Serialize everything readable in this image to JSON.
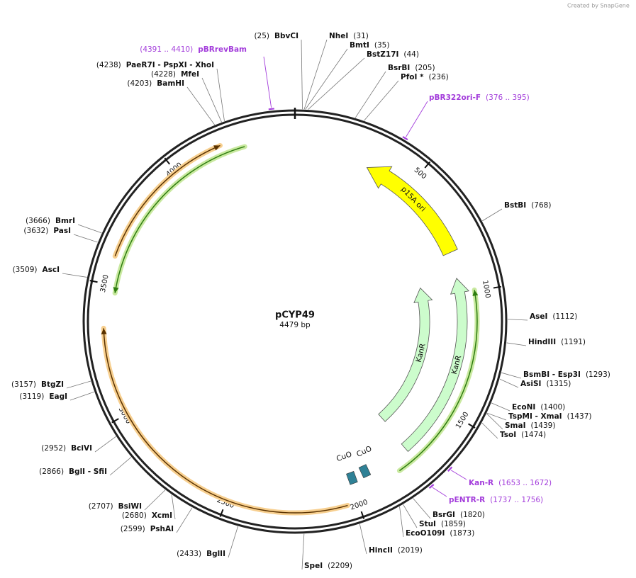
{
  "credit": "Created by SnapGene",
  "plasmid": {
    "name": "pCYP49",
    "length": "4479 bp"
  },
  "ticks": [
    "500",
    "1000",
    "1500",
    "2000",
    "2500",
    "3000",
    "3500",
    "4000"
  ],
  "enzymes": [
    {
      "name": "BbvCI",
      "position": "(25)"
    },
    {
      "name": "NheI",
      "position": "(31)"
    },
    {
      "name": "BmtI",
      "position": "(35)"
    },
    {
      "name": "BstZ17I",
      "position": "(44)"
    },
    {
      "name": "BsrBI",
      "position": "(205)"
    },
    {
      "name": "PfoI *",
      "position": "(236)"
    },
    {
      "name": "BstBI",
      "position": "(768)"
    },
    {
      "name": "AseI",
      "position": "(1112)"
    },
    {
      "name": "HindIII",
      "position": "(1191)"
    },
    {
      "name": "BsmBI - Esp3I",
      "position": "(1293)"
    },
    {
      "name": "AsiSI",
      "position": "(1315)"
    },
    {
      "name": "EcoNI",
      "position": "(1400)"
    },
    {
      "name": "TspMI - XmaI",
      "position": "(1437)"
    },
    {
      "name": "SmaI",
      "position": "(1439)"
    },
    {
      "name": "TsoI",
      "position": "(1474)"
    },
    {
      "name": "BsrGI",
      "position": "(1820)"
    },
    {
      "name": "StuI",
      "position": "(1859)"
    },
    {
      "name": "EcoO109I",
      "position": "(1873)"
    },
    {
      "name": "HincII",
      "position": "(2019)"
    },
    {
      "name": "SpeI",
      "position": "(2209)"
    },
    {
      "name": "BglII",
      "position": "(2433)"
    },
    {
      "name": "PshAI",
      "position": "(2599)"
    },
    {
      "name": "XcmI",
      "position": "(2680)"
    },
    {
      "name": "BsiWI",
      "position": "(2707)"
    },
    {
      "name": "BglI - SfiI",
      "position": "(2866)"
    },
    {
      "name": "BciVI",
      "position": "(2952)"
    },
    {
      "name": "EagI",
      "position": "(3119)"
    },
    {
      "name": "BtgZI",
      "position": "(3157)"
    },
    {
      "name": "AscI",
      "position": "(3509)"
    },
    {
      "name": "PasI",
      "position": "(3632)"
    },
    {
      "name": "BmrI",
      "position": "(3666)"
    },
    {
      "name": "BamHI",
      "position": "(4203)"
    },
    {
      "name": "MfeI",
      "position": "(4228)"
    },
    {
      "name": "PaeR7I - PspXI - XhoI",
      "position": "(4238)"
    }
  ],
  "primers": [
    {
      "name": "pBRrevBam",
      "range": "(4391 .. 4410)"
    },
    {
      "name": "pBR322ori-F",
      "range": "(376 .. 395)"
    },
    {
      "name": "Kan-R",
      "range": "(1653 .. 1672)"
    },
    {
      "name": "pENTR-R",
      "range": "(1737 .. 1756)"
    }
  ],
  "features": [
    {
      "label": "p15A ori"
    },
    {
      "label": "KanR"
    },
    {
      "label": "KanR"
    },
    {
      "label": "CuO"
    },
    {
      "label": "CuO"
    }
  ]
}
